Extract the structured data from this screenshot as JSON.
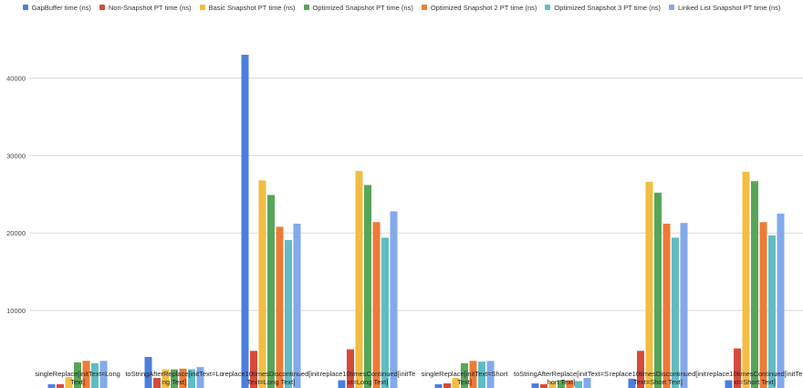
{
  "chart_data": {
    "type": "bar",
    "title": "",
    "xlabel": "",
    "ylabel": "",
    "ylim": [
      0,
      45000
    ],
    "yticks": [
      10000,
      20000,
      30000,
      40000
    ],
    "grid": true,
    "legend_position": "top",
    "categories": [
      "singleReplace[initText=Long Text]",
      "toStringAfterReplace[initText=Long Text]",
      "replace10timesDiscontinued[initText=Long Text]",
      "replace10timesContinued[initText=Long Text]",
      "singleReplace[initText=Short Text]",
      "toStringAfterReplace[initText=Short Text]",
      "replace10timesDiscontinued[initText=Short Text]",
      "replace10timesContinued[initText=Short Text]"
    ],
    "category_label_lines": [
      [
        "singleReplace[initText=Long",
        "Text]"
      ],
      [
        "toStringAfterReplace[initText=Lo",
        "ng Text]"
      ],
      [
        "replace10timesDiscontinued[init",
        "Text=Long Text]"
      ],
      [
        "replace10timesContinued[initTe",
        "xt=Long Text]"
      ],
      [
        "singleReplace[initText=Short",
        "Text]"
      ],
      [
        "toStringAfterReplace[initText=S",
        "hort Text]"
      ],
      [
        "replace10timesDiscontinued[init",
        "Text=Short Text]"
      ],
      [
        "replace10timesContinued[initTe",
        "xt=Short Text]"
      ]
    ],
    "series": [
      {
        "name": "GapBuffer time (ns)",
        "color": "#4a7fe0",
        "values": [
          500,
          4000,
          43000,
          1000,
          500,
          600,
          1200,
          1000
        ]
      },
      {
        "name": "Non-Snapshot PT time (ns)",
        "color": "#d64a3b",
        "values": [
          500,
          1300,
          4800,
          5000,
          600,
          500,
          4800,
          5100
        ]
      },
      {
        "name": "Basic Snapshot PT time (ns)",
        "color": "#f2bd42",
        "values": [
          1400,
          2400,
          26800,
          28000,
          1300,
          800,
          26600,
          27900
        ]
      },
      {
        "name": "Optimized Snapshot PT time (ns)",
        "color": "#57a55a",
        "values": [
          3300,
          2400,
          24900,
          26200,
          3200,
          1000,
          25200,
          26700
        ]
      },
      {
        "name": "Optimized Snapshot 2 PT time (ns)",
        "color": "#ef7a35",
        "values": [
          3500,
          2500,
          20800,
          21400,
          3500,
          1000,
          21200,
          21400
        ]
      },
      {
        "name": "Optimized Snapshot 3 PT time (ns)",
        "color": "#5fbcc4",
        "values": [
          3200,
          2400,
          19100,
          19400,
          3400,
          900,
          19400,
          19700
        ]
      },
      {
        "name": "Linked List Snapshot PT time (ns)",
        "color": "#82a9ec",
        "values": [
          3500,
          2700,
          21200,
          22800,
          3500,
          1300,
          21300,
          22500
        ]
      }
    ]
  }
}
